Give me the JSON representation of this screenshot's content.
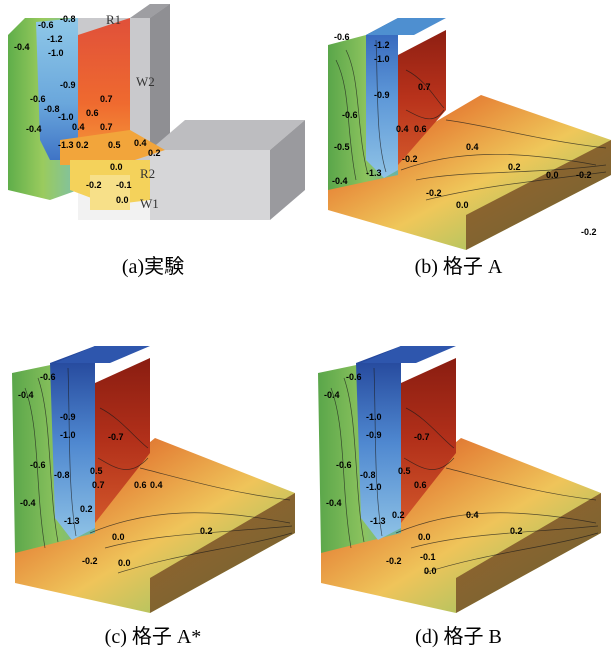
{
  "panels": [
    {
      "id": "a",
      "caption": "(a)実験",
      "style": "experiment",
      "region_labels": [
        "R1",
        "W2",
        "R2",
        "W1"
      ],
      "contour_labels": [
        "-0.6",
        "-0.8",
        "-1.2",
        "-1.0",
        "-0.4",
        "-0.9",
        "-0.6",
        "-0.8",
        "-1.0",
        "-0.4",
        "0.4",
        "0.6",
        "0.7",
        "0.7",
        "-1.3",
        "0.2",
        "0.5",
        "0.4",
        "0.2",
        "0.0",
        "-0.2",
        "-0.1",
        "0.0"
      ]
    },
    {
      "id": "b",
      "caption": "(b)  格子 A",
      "style": "simulation",
      "contour_labels": [
        "-0.6",
        "-1.2",
        "-1.0",
        "-0.9",
        "0.7",
        "-0.6",
        "-0.5",
        "0.4",
        "0.6",
        "0.4",
        "-1.3",
        "-0.2",
        "0.2",
        "0.0",
        "-0.2",
        "-0.4",
        "-0.2",
        "0.0",
        "-0.2"
      ]
    },
    {
      "id": "c",
      "caption": "(c)  格子 A*",
      "style": "simulation",
      "contour_labels": [
        "-0.6",
        "-0.4",
        "-0.9",
        "-1.0",
        "-0.7",
        "-0.6",
        "-0.8",
        "0.5",
        "0.7",
        "0.6",
        "0.4",
        "-0.4",
        "-1.3",
        "0.2",
        "0.0",
        "0.2",
        "-0.2",
        "0.0"
      ]
    },
    {
      "id": "d",
      "caption": "(d)  格子 B",
      "style": "simulation",
      "contour_labels": [
        "-0.6",
        "-0.4",
        "-1.0",
        "-0.9",
        "-0.7",
        "-0.6",
        "-0.8",
        "-1.0",
        "0.5",
        "0.6",
        "-0.4",
        "-1.3",
        "0.2",
        "0.4",
        "0.2",
        "0.0",
        "-0.2",
        "-0.1",
        "0.0"
      ]
    }
  ],
  "colors": {
    "red": "#c0391b",
    "orange": "#e9842b",
    "yellow": "#f2d35a",
    "green": "#8cc063",
    "blue": "#3d6fc4",
    "gray": "#b8b8bb"
  }
}
